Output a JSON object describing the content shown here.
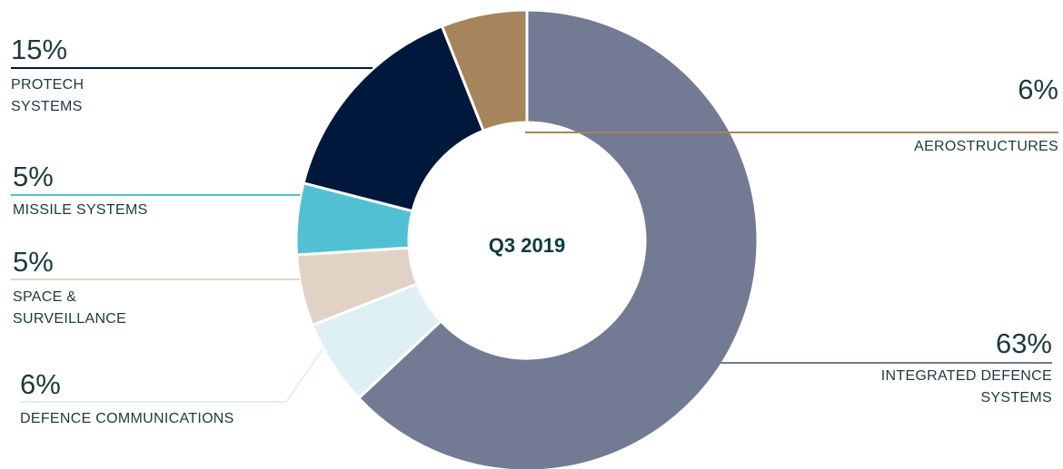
{
  "chart_data": {
    "type": "donut",
    "center_label": "Q3 2019",
    "categories": [
      "INTEGRATED DEFENCE SYSTEMS",
      "DEFENCE COMMUNICATIONS",
      "SPACE & SURVEILLANCE",
      "MISSILE SYSTEMS",
      "PROTECH SYSTEMS",
      "AEROSTRUCTURES"
    ],
    "values": [
      63,
      6,
      5,
      5,
      15,
      6
    ],
    "value_labels": [
      "63%",
      "6%",
      "5%",
      "5%",
      "15%",
      "6%"
    ],
    "colors": [
      "#737a93",
      "#dff0f5",
      "#e0d3c5",
      "#51c0d3",
      "#00183c",
      "#a6845c"
    ]
  }
}
